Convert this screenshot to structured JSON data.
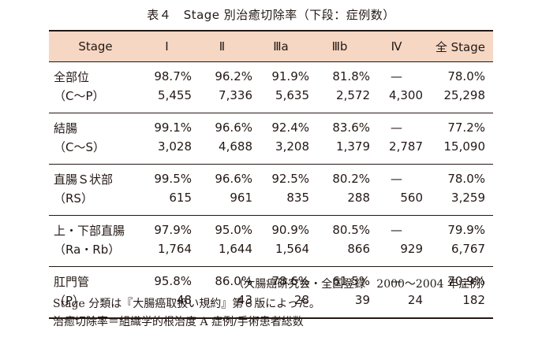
{
  "caption": "表４　Stage 別治癒切除率（下段：症例数）",
  "headers": [
    "Stage",
    "Ⅰ",
    "Ⅱ",
    "Ⅲa",
    "Ⅲb",
    "Ⅳ",
    "全 Stage"
  ],
  "rows": [
    {
      "label1": "全部位",
      "label2": "（C〜P）",
      "rates": [
        "98.7%",
        "96.2%",
        "91.9%",
        "81.8%",
        "—",
        "78.0%"
      ],
      "counts": [
        "5,455",
        "7,336",
        "5,635",
        "2,572",
        "4,300",
        "25,298"
      ]
    },
    {
      "label1": "結腸",
      "label2": "（C〜S）",
      "rates": [
        "99.1%",
        "96.6%",
        "92.4%",
        "83.6%",
        "—",
        "77.2%"
      ],
      "counts": [
        "3,028",
        "4,688",
        "3,208",
        "1,379",
        "2,787",
        "15,090"
      ]
    },
    {
      "label1": "直腸Ｓ状部",
      "label2": "（RS）",
      "rates": [
        "99.5%",
        "96.6%",
        "92.5%",
        "80.2%",
        "—",
        "78.0%"
      ],
      "counts": [
        "615",
        "961",
        "835",
        "288",
        "560",
        "3,259"
      ]
    },
    {
      "label1": "上・下部直腸",
      "label2": "（Ra・Rb）",
      "rates": [
        "97.9%",
        "95.0%",
        "90.9%",
        "80.5%",
        "—",
        "79.9%"
      ],
      "counts": [
        "1,764",
        "1,644",
        "1,564",
        "866",
        "929",
        "6,767"
      ]
    },
    {
      "label1": "肛門管",
      "label2": "（P）",
      "rates": [
        "95.8%",
        "86.0%",
        "78.6%",
        "61.5%",
        "—",
        "70.9%"
      ],
      "counts": [
        "48",
        "43",
        "28",
        "39",
        "24",
        "182"
      ]
    }
  ],
  "source": "（大腸癌研究会・全国登録　2000〜2004 年症例）",
  "notes": [
    "Stage 分類は『大腸癌取扱い規約』第６版によった。",
    "治癒切除率＝組織学的根治度 A 症例/手術患者総数"
  ],
  "colors": {
    "header_bg": "#f6d7c3",
    "text": "#231815"
  }
}
